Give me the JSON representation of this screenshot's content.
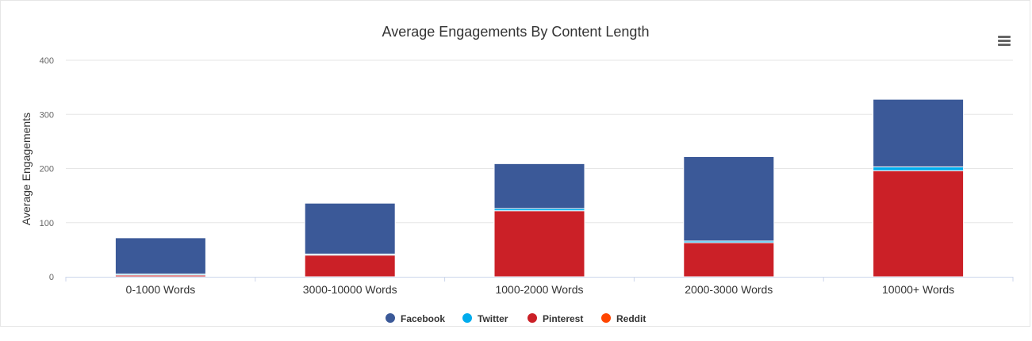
{
  "menu": {
    "icon": "hamburger-menu-icon"
  },
  "colors": {
    "facebook": "#3b5998",
    "twitter": "#00aced",
    "pinterest": "#cb2027",
    "reddit": "#ff4500",
    "grid": "#e6e6e6",
    "axis_text": "#666666",
    "title_text": "#333333"
  },
  "chart_data": {
    "type": "bar",
    "stacked": true,
    "title": "Average Engagements By Content Length",
    "xlabel": "",
    "ylabel": "Average Engagements",
    "ylim": [
      0,
      400
    ],
    "yticks": [
      0,
      100,
      200,
      300,
      400
    ],
    "grid": true,
    "legend_position": "bottom-center",
    "categories": [
      "0-1000 Words",
      "3000-10000 Words",
      "1000-2000 Words",
      "2000-3000 Words",
      "10000+ Words"
    ],
    "series": [
      {
        "name": "Facebook",
        "color": "#3b5998",
        "values": [
          67,
          94,
          83,
          156,
          125
        ]
      },
      {
        "name": "Twitter",
        "color": "#00aced",
        "values": [
          2,
          2,
          4,
          3,
          7
        ]
      },
      {
        "name": "Pinterest",
        "color": "#cb2027",
        "values": [
          3,
          40,
          122,
          63,
          196
        ]
      },
      {
        "name": "Reddit",
        "color": "#ff4500",
        "values": [
          0,
          0,
          0,
          0,
          0
        ]
      }
    ]
  }
}
